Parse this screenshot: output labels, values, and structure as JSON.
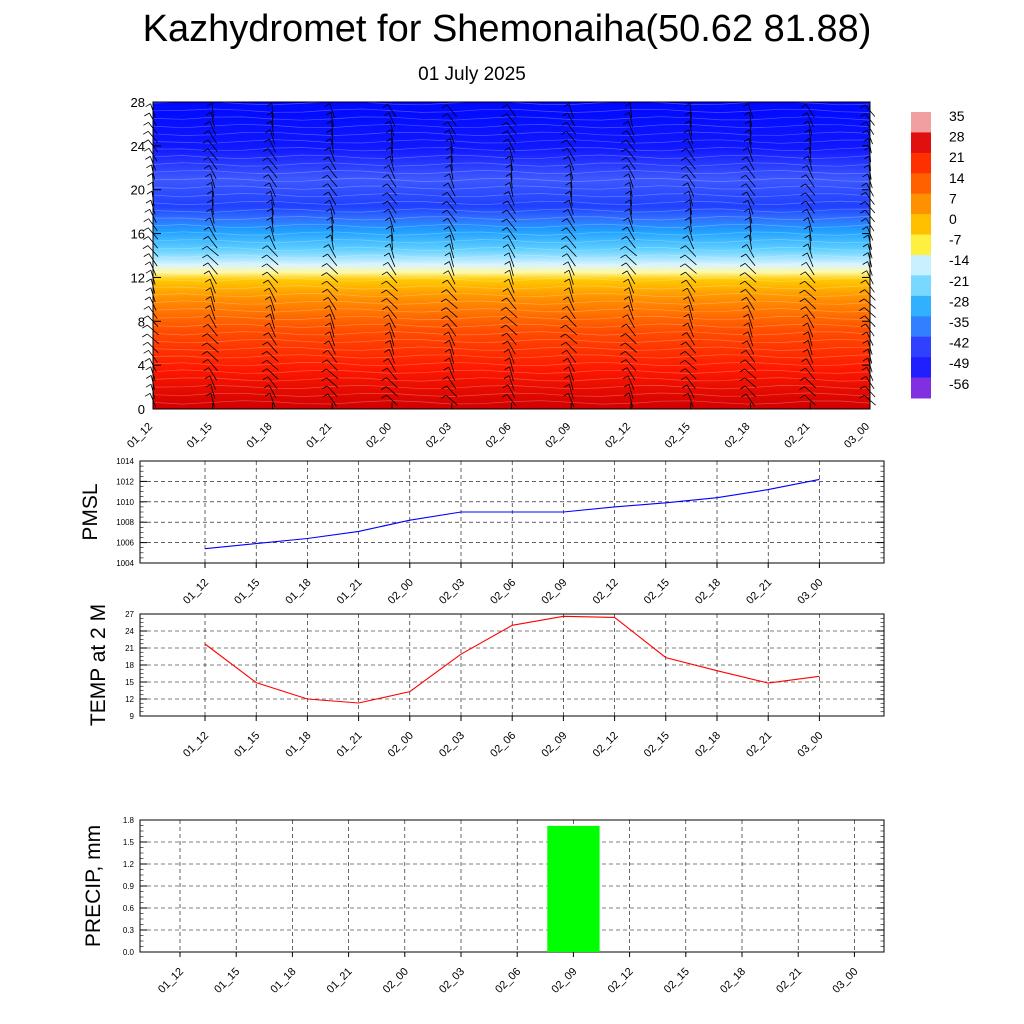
{
  "header": {
    "title": "Kazhydromet for Shemonaiha(50.62 81.88)",
    "date": "01 July 2025"
  },
  "colors": {
    "pmsl_line": "#0000ff",
    "temp_line": "#ff0000",
    "precip_bar": "#00ff00",
    "grid": "#000000"
  },
  "colorbar": {
    "labels": [
      "35",
      "28",
      "21",
      "14",
      "7",
      "0",
      "-7",
      "-14",
      "-21",
      "-28",
      "-35",
      "-42",
      "-49",
      "-56"
    ],
    "colors": [
      "#f0a0a0",
      "#e01010",
      "#ff3000",
      "#ff6000",
      "#ff9000",
      "#ffc000",
      "#fff040",
      "#c8f0ff",
      "#78d8ff",
      "#30b0ff",
      "#3080ff",
      "#3040ff",
      "#2020ff",
      "#8030e0"
    ]
  },
  "chart_data": [
    {
      "type": "heatmap",
      "title": "",
      "ylabel": "",
      "ylim": [
        0,
        28
      ],
      "yticks": [
        "0",
        "4",
        "8",
        "12",
        "16",
        "20",
        "24",
        "28"
      ],
      "categories": [
        "01_12",
        "01_15",
        "01_18",
        "01_21",
        "02_00",
        "02_03",
        "02_06",
        "02_09",
        "02_12",
        "02_15",
        "02_18",
        "02_21",
        "03_00"
      ],
      "value_range": [
        -56,
        35
      ],
      "note_levels": "temperature decreasing with level: about +28 near 0, about 0 near 12, about -20 near 16, about -55 near 28",
      "wind_barbs": true
    },
    {
      "type": "line",
      "ylabel": "PMSL",
      "ylim": [
        1004,
        1014
      ],
      "yticks": [
        "1004",
        "1006",
        "1008",
        "1010",
        "1012",
        "1014"
      ],
      "categories": [
        "01_12",
        "01_15",
        "01_18",
        "01_21",
        "02_00",
        "02_03",
        "02_06",
        "02_09",
        "02_12",
        "02_15",
        "02_18",
        "02_21",
        "03_00"
      ],
      "values": [
        1005.4,
        1005.9,
        1006.4,
        1007.1,
        1008.2,
        1009.0,
        1009.0,
        1009.0,
        1009.5,
        1009.9,
        1010.4,
        1011.2,
        1012.2
      ]
    },
    {
      "type": "line",
      "ylabel": "TEMP at 2 M",
      "ylim": [
        9,
        27
      ],
      "yticks": [
        "9",
        "12",
        "15",
        "18",
        "21",
        "24",
        "27"
      ],
      "categories": [
        "01_12",
        "01_15",
        "01_18",
        "01_21",
        "02_00",
        "02_03",
        "02_06",
        "02_09",
        "02_12",
        "02_15",
        "02_18",
        "02_21",
        "03_00"
      ],
      "values": [
        21.7,
        14.9,
        12.0,
        11.3,
        13.3,
        19.9,
        25.0,
        26.6,
        26.4,
        19.3,
        17.0,
        14.8,
        16.0
      ]
    },
    {
      "type": "bar",
      "ylabel": "PRECIP, mm",
      "ylim": [
        0,
        1.8
      ],
      "yticks": [
        "0.0",
        "0.3",
        "0.6",
        "0.9",
        "1.2",
        "1.5",
        "1.8"
      ],
      "categories": [
        "01_12",
        "01_15",
        "01_18",
        "01_21",
        "02_00",
        "02_03",
        "02_06",
        "02_09",
        "02_12",
        "02_15",
        "02_18",
        "02_21",
        "03_00"
      ],
      "values": [
        0,
        0,
        0,
        0,
        0,
        0,
        0,
        1.72,
        0,
        0,
        0,
        0,
        0
      ]
    }
  ]
}
